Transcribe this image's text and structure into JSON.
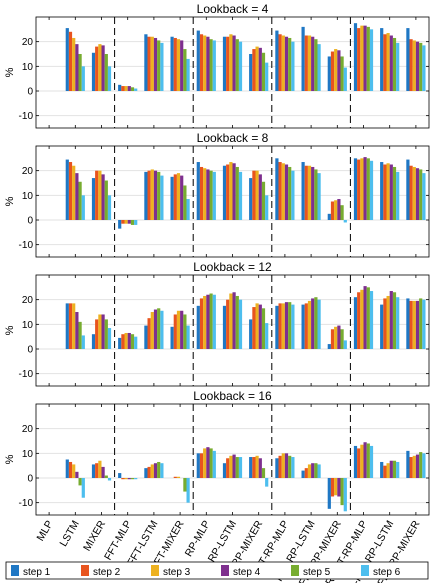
{
  "chart_data": [
    {
      "type": "bar",
      "title": "Lookback = 4",
      "ylabel": "%",
      "ylim": [
        -15,
        30
      ],
      "yticks": [
        -10,
        0,
        10,
        20
      ],
      "grid": "y",
      "categories": [
        "MLP",
        "LSTM",
        "MIXER",
        "FFT-MLP",
        "FFT-LSTM",
        "FFT-MIXER",
        "RP-MLP",
        "RP-LSTM",
        "RP-MIXER",
        "FFT-RP-MLP",
        "FFT-RP-LSTM",
        "FFT-RP-MIXER",
        "LR-FFT-RP-MLP",
        "LR-FFT-RP-LSTM",
        "LR-FFT-RP-MIXER"
      ],
      "values": [
        [
          0,
          0,
          0,
          0,
          0,
          0
        ],
        [
          25.5,
          24,
          21.5,
          19,
          15,
          10
        ],
        [
          15.5,
          18,
          19,
          18.5,
          15,
          10
        ],
        [
          2.5,
          2,
          2,
          2,
          1.5,
          1
        ],
        [
          23,
          22,
          22,
          21.5,
          20.5,
          19.5
        ],
        [
          22,
          21.5,
          21,
          20.5,
          17,
          13
        ],
        [
          24.5,
          23,
          22.5,
          22,
          21,
          20.5
        ],
        [
          22,
          22,
          23,
          22.5,
          21,
          20
        ],
        [
          15,
          17,
          18,
          17.5,
          15.5,
          11.5
        ],
        [
          24.5,
          23,
          22.5,
          22,
          21.5,
          20
        ],
        [
          26,
          22.5,
          22.5,
          22,
          21,
          19
        ],
        [
          14,
          16,
          17,
          16.5,
          14,
          9.5
        ],
        [
          27.5,
          25.5,
          26.5,
          26.5,
          26,
          25
        ],
        [
          25.5,
          23,
          23.5,
          22.5,
          21.5,
          19.5
        ],
        [
          25.5,
          21,
          20.5,
          20,
          19.5,
          18.5
        ]
      ]
    },
    {
      "type": "bar",
      "title": "Lookback = 8",
      "ylabel": "%",
      "ylim": [
        -15,
        30
      ],
      "yticks": [
        -10,
        0,
        10,
        20
      ],
      "grid": "y",
      "categories": [
        "MLP",
        "LSTM",
        "MIXER",
        "FFT-MLP",
        "FFT-LSTM",
        "FFT-MIXER",
        "RP-MLP",
        "RP-LSTM",
        "RP-MIXER",
        "FFT-RP-MLP",
        "FFT-RP-LSTM",
        "FFT-RP-MIXER",
        "LR-FFT-RP-MLP",
        "LR-FFT-RP-LSTM",
        "LR-FFT-RP-MIXER"
      ],
      "values": [
        [
          0,
          0,
          0,
          0,
          0,
          0
        ],
        [
          24.5,
          23.5,
          22,
          19,
          15.5,
          10
        ],
        [
          17,
          20,
          20,
          18.5,
          16,
          10
        ],
        [
          -3.5,
          -1.5,
          -1.5,
          -1.5,
          -2,
          -2
        ],
        [
          19.5,
          20,
          20.5,
          20,
          19.5,
          18
        ],
        [
          17.5,
          18.5,
          19,
          18,
          14,
          8.5
        ],
        [
          23.5,
          21.5,
          21,
          20.5,
          20,
          19.5
        ],
        [
          22,
          22.5,
          23.5,
          23,
          21.5,
          19.5
        ],
        [
          17,
          20,
          20,
          18.5,
          15.5,
          10
        ],
        [
          25,
          23.5,
          23,
          22.5,
          21.5,
          20
        ],
        [
          23.5,
          22,
          22,
          21.5,
          20.5,
          19
        ],
        [
          2.5,
          7.5,
          8,
          8.5,
          6,
          -1
        ],
        [
          25,
          24.5,
          25,
          25.5,
          25,
          24
        ],
        [
          23.5,
          22.5,
          23,
          22.5,
          21.5,
          19.5
        ],
        [
          24.5,
          22,
          21.5,
          21,
          20.5,
          19
        ]
      ]
    },
    {
      "type": "bar",
      "title": "Lookback = 12",
      "ylabel": "%",
      "ylim": [
        -15,
        30
      ],
      "yticks": [
        -10,
        0,
        10,
        20
      ],
      "grid": "y",
      "categories": [
        "MLP",
        "LSTM",
        "MIXER",
        "FFT-MLP",
        "FFT-LSTM",
        "FFT-MIXER",
        "RP-MLP",
        "RP-LSTM",
        "RP-MIXER",
        "FFT-RP-MLP",
        "FFT-RP-LSTM",
        "FFT-RP-MIXER",
        "LR-FFT-RP-MLP",
        "LR-FFT-RP-LSTM",
        "LR-FFT-RP-MIXER"
      ],
      "values": [
        [
          0,
          0,
          0,
          0,
          0,
          0
        ],
        [
          18.5,
          18.5,
          18.5,
          15,
          11,
          5.5
        ],
        [
          6,
          12,
          14,
          14,
          12,
          8.5
        ],
        [
          4.5,
          6,
          6.5,
          6.5,
          6,
          5
        ],
        [
          9.5,
          12.5,
          15,
          16,
          16.5,
          15.5
        ],
        [
          9,
          14,
          15.5,
          15.5,
          14,
          9.5
        ],
        [
          17.5,
          20.5,
          21.5,
          22,
          22.5,
          22
        ],
        [
          17.5,
          20,
          22.5,
          23,
          21.5,
          20
        ],
        [
          12,
          17,
          18.5,
          18,
          16.5,
          10.5
        ],
        [
          17.5,
          18.5,
          18.5,
          19,
          19,
          18
        ],
        [
          18,
          18.5,
          19.5,
          20.5,
          21,
          20
        ],
        [
          2,
          8,
          9,
          9.5,
          8,
          3.5
        ],
        [
          21,
          23,
          24,
          25.5,
          25,
          23.5
        ],
        [
          18,
          20.5,
          21.5,
          23.5,
          23,
          21
        ],
        [
          20.5,
          19.5,
          19.5,
          19.5,
          20.5,
          20
        ]
      ]
    },
    {
      "type": "bar",
      "title": "Lookback = 16",
      "ylabel": "%",
      "ylim": [
        -15,
        30
      ],
      "yticks": [
        -10,
        0,
        10,
        20
      ],
      "grid": "y",
      "categories": [
        "MLP",
        "LSTM",
        "MIXER",
        "FFT-MLP",
        "FFT-LSTM",
        "FFT-MIXER",
        "RP-MLP",
        "RP-LSTM",
        "RP-MIXER",
        "FFT-RP-MLP",
        "FFT-RP-LSTM",
        "FFT-RP-MIXER",
        "LR-FFT-RP-MLP",
        "LR-FFT-RP-LSTM",
        "LR-FFT-RP-MIXER"
      ],
      "values": [
        [
          0,
          0,
          0,
          0,
          0,
          0
        ],
        [
          7.5,
          6.5,
          5.5,
          2.5,
          -3,
          -8
        ],
        [
          5.5,
          6,
          7,
          4.5,
          1,
          -1
        ],
        [
          2,
          -0.5,
          -0.5,
          -0.5,
          -0.5,
          -0.5
        ],
        [
          4,
          4.5,
          5.5,
          6,
          6.5,
          6
        ],
        [
          0,
          0.5,
          0.5,
          0,
          -5.5,
          -10
        ],
        [
          10,
          10,
          12,
          12.5,
          12,
          11
        ],
        [
          6,
          8,
          9,
          9.5,
          8.5,
          8.5
        ],
        [
          8.5,
          8.5,
          9,
          8,
          4,
          -3.5
        ],
        [
          8,
          9,
          10,
          10,
          9,
          8.5
        ],
        [
          3,
          4,
          5.5,
          6,
          6,
          5.5
        ],
        [
          -12.5,
          -7.5,
          -7,
          -7.5,
          -11,
          -13.5
        ],
        [
          13,
          12,
          13.5,
          14.5,
          14,
          13
        ],
        [
          6.5,
          5,
          6,
          7,
          7,
          6.5
        ],
        [
          11,
          8.5,
          9,
          9.5,
          10.5,
          10
        ]
      ]
    }
  ],
  "legend": {
    "position": "bottom-left",
    "items": [
      {
        "label": "step 1",
        "color": "#1f77c4"
      },
      {
        "label": "step 2",
        "color": "#e8541e"
      },
      {
        "label": "step 3",
        "color": "#edb120"
      },
      {
        "label": "step 4",
        "color": "#7e2f8e"
      },
      {
        "label": "step 5",
        "color": "#77ac30"
      },
      {
        "label": "step 6",
        "color": "#4dbeee"
      }
    ]
  }
}
